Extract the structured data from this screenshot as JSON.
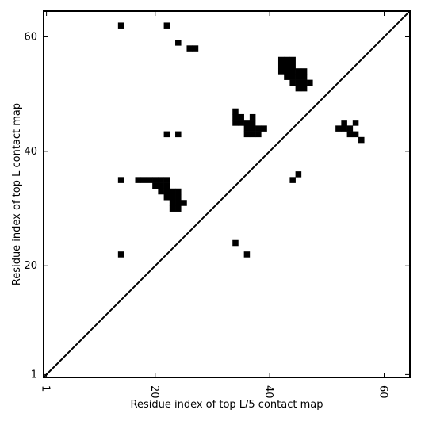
{
  "chart_data": {
    "type": "heatmap",
    "title": "",
    "xlabel": "Residue index of top L/5 contact map",
    "ylabel": "Residue index of top L contact map",
    "xlim": [
      0.5,
      64.5
    ],
    "ylim": [
      0.5,
      64.5
    ],
    "xticks": [
      1,
      20,
      40,
      60
    ],
    "yticks": [
      1,
      20,
      40,
      60
    ],
    "xtick_labels": [
      "1",
      "20",
      "40",
      "60"
    ],
    "ytick_labels": [
      "1",
      "20",
      "40",
      "60"
    ],
    "diagonal": true,
    "grid": false,
    "colors": {
      "contact": "#000000",
      "background": "#ffffff"
    },
    "contacts": [
      [
        14,
        62
      ],
      [
        22,
        62
      ],
      [
        24,
        59
      ],
      [
        26,
        58
      ],
      [
        27,
        58
      ],
      [
        42,
        56
      ],
      [
        43,
        56
      ],
      [
        44,
        56
      ],
      [
        42,
        55
      ],
      [
        43,
        55
      ],
      [
        44,
        55
      ],
      [
        42,
        54
      ],
      [
        43,
        54
      ],
      [
        44,
        54
      ],
      [
        45,
        54
      ],
      [
        46,
        54
      ],
      [
        43,
        53
      ],
      [
        44,
        53
      ],
      [
        45,
        53
      ],
      [
        46,
        53
      ],
      [
        44,
        52
      ],
      [
        45,
        52
      ],
      [
        46,
        52
      ],
      [
        47,
        52
      ],
      [
        45,
        51
      ],
      [
        46,
        51
      ],
      [
        34,
        47
      ],
      [
        34,
        46
      ],
      [
        35,
        46
      ],
      [
        37,
        46
      ],
      [
        34,
        45
      ],
      [
        35,
        45
      ],
      [
        36,
        45
      ],
      [
        37,
        45
      ],
      [
        36,
        44
      ],
      [
        37,
        44
      ],
      [
        38,
        44
      ],
      [
        39,
        44
      ],
      [
        36,
        43
      ],
      [
        37,
        43
      ],
      [
        38,
        43
      ],
      [
        22,
        43
      ],
      [
        24,
        43
      ],
      [
        53,
        45
      ],
      [
        55,
        45
      ],
      [
        52,
        44
      ],
      [
        53,
        44
      ],
      [
        54,
        44
      ],
      [
        54,
        43
      ],
      [
        55,
        43
      ],
      [
        56,
        42
      ],
      [
        45,
        36
      ],
      [
        44,
        35
      ],
      [
        14,
        35
      ],
      [
        17,
        35
      ],
      [
        18,
        35
      ],
      [
        19,
        35
      ],
      [
        20,
        35
      ],
      [
        21,
        35
      ],
      [
        22,
        35
      ],
      [
        20,
        34
      ],
      [
        21,
        34
      ],
      [
        22,
        34
      ],
      [
        21,
        33
      ],
      [
        22,
        33
      ],
      [
        23,
        33
      ],
      [
        24,
        33
      ],
      [
        22,
        32
      ],
      [
        23,
        32
      ],
      [
        24,
        32
      ],
      [
        23,
        31
      ],
      [
        24,
        31
      ],
      [
        25,
        31
      ],
      [
        23,
        30
      ],
      [
        24,
        30
      ],
      [
        34,
        24
      ],
      [
        36,
        22
      ],
      [
        14,
        22
      ]
    ]
  }
}
